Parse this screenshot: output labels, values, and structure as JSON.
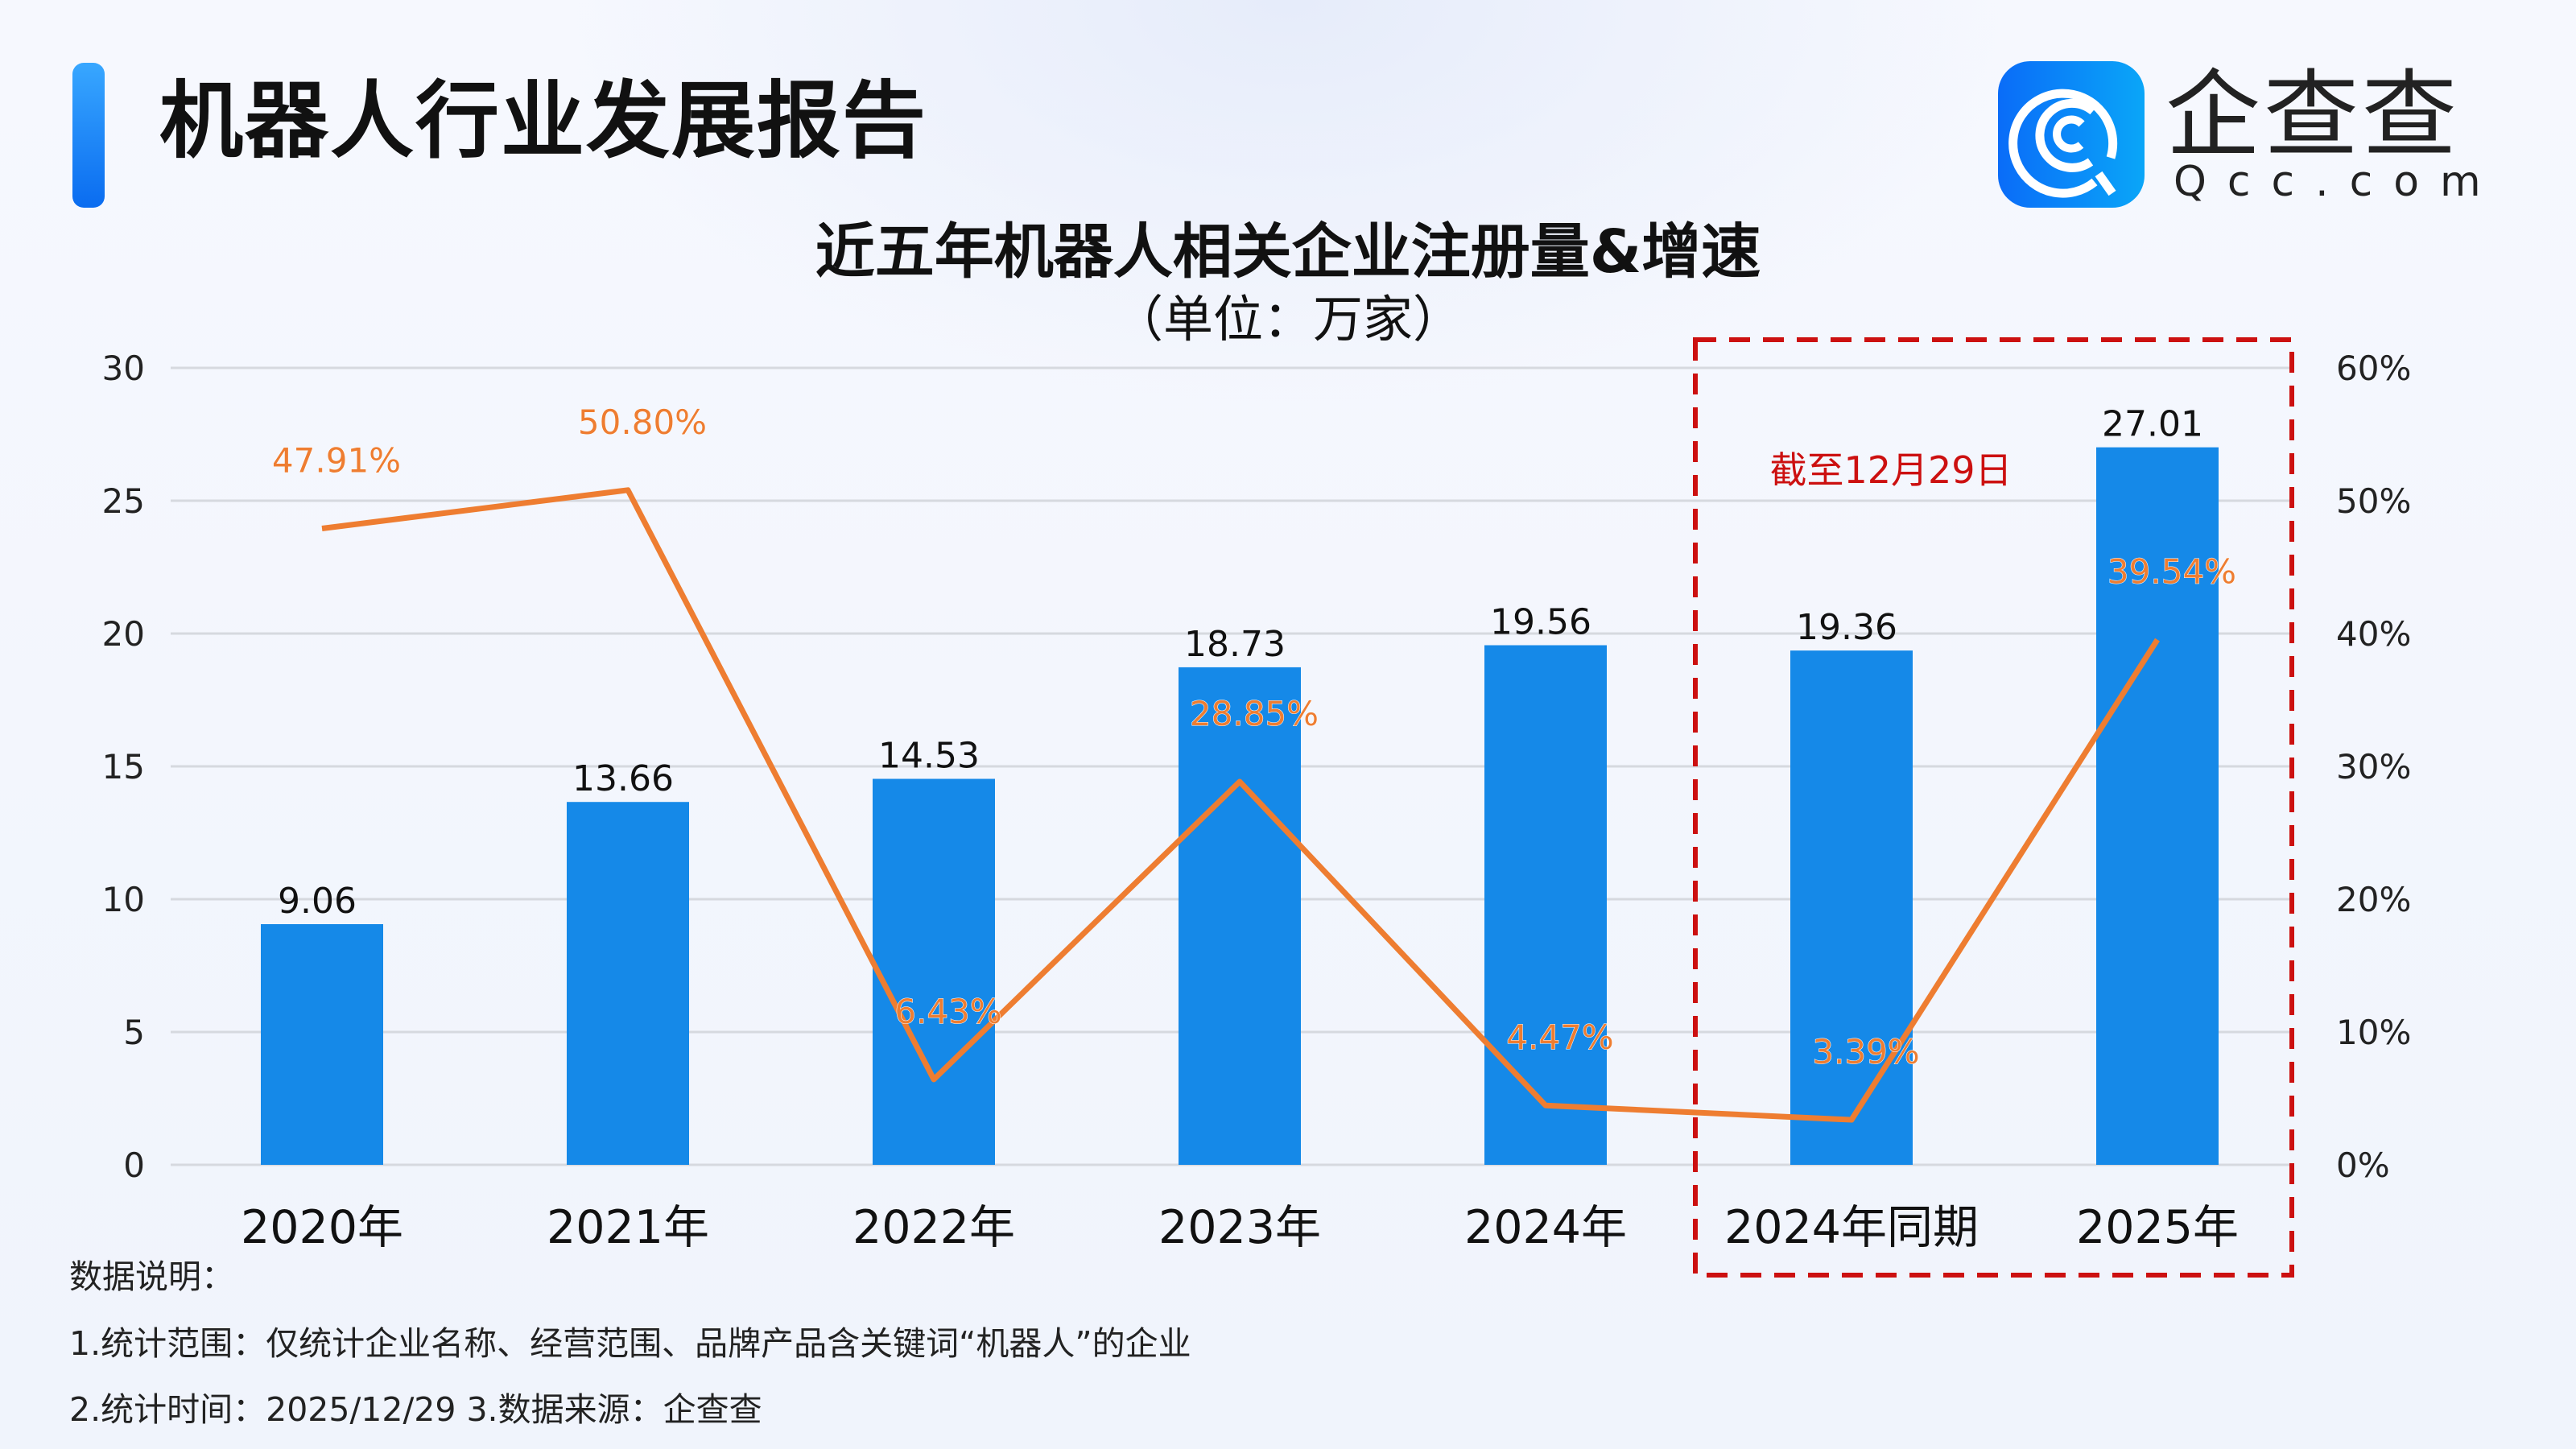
{
  "header": {
    "title": "机器人行业发展报告",
    "logo_text": "企查查",
    "logo_sub": "Qcc.com"
  },
  "colors": {
    "bar": "#1589e8",
    "line": "#ee7d31",
    "highlight_box": "#cc1010",
    "accent": "#1a7cf5"
  },
  "chart_data": {
    "type": "bar+line",
    "title": "近五年机器人相关企业注册量&增速",
    "subtitle": "（单位：万家）",
    "categories": [
      "2020年",
      "2021年",
      "2022年",
      "2023年",
      "2024年",
      "2024年同期",
      "2025年"
    ],
    "series": [
      {
        "type": "bar",
        "axis": "left",
        "values": [
          9.06,
          13.66,
          14.53,
          18.73,
          19.56,
          19.36,
          27.01
        ],
        "labels": [
          "9.06",
          "13.66",
          "14.53",
          "18.73",
          "19.56",
          "19.36",
          "27.01"
        ]
      },
      {
        "type": "line",
        "axis": "right",
        "values": [
          47.91,
          50.8,
          6.43,
          28.85,
          4.47,
          3.39,
          39.54
        ],
        "labels": [
          "47.91%",
          "50.80%",
          "6.43%",
          "28.85%",
          "4.47%",
          "3.39%",
          "39.54%"
        ]
      }
    ],
    "y_left": {
      "min": 0,
      "max": 30,
      "ticks": [
        "0",
        "5",
        "10",
        "15",
        "20",
        "25",
        "30"
      ]
    },
    "y_right": {
      "min": 0,
      "max": 60,
      "ticks": [
        "0%",
        "10%",
        "20%",
        "30%",
        "40%",
        "50%",
        "60%"
      ]
    },
    "grid": true,
    "highlight": {
      "categories": [
        "2024年同期",
        "2025年"
      ],
      "annotation": "截至12月29日"
    }
  },
  "notes": {
    "heading": "数据说明：",
    "line1": "1.统计范围：仅统计企业名称、经营范围、品牌产品含关键词“机器人”的企业",
    "line2": "2.统计时间：2025/12/29  3.数据来源：企查查"
  }
}
